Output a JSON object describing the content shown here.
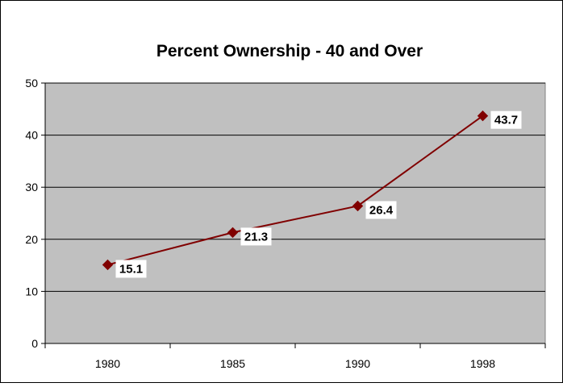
{
  "chart_data": {
    "type": "line",
    "title": "Percent Ownership - 40 and Over",
    "xlabel": "",
    "ylabel": "",
    "categories": [
      "1980",
      "1985",
      "1990",
      "1998"
    ],
    "series": [
      {
        "values": [
          15.1,
          21.3,
          26.4,
          43.7
        ]
      }
    ],
    "ylim": [
      0,
      50
    ],
    "yticks": [
      "0",
      "10",
      "20",
      "30",
      "40",
      "50"
    ],
    "grid": true,
    "legend": "none",
    "data_labels": [
      "15.1",
      "21.3",
      "26.4",
      "43.7"
    ],
    "colors": {
      "plot_background": "#c0c0c0",
      "line": "#800000",
      "marker": "#800000",
      "gridline": "#000000",
      "label_background": "#ffffff"
    }
  }
}
